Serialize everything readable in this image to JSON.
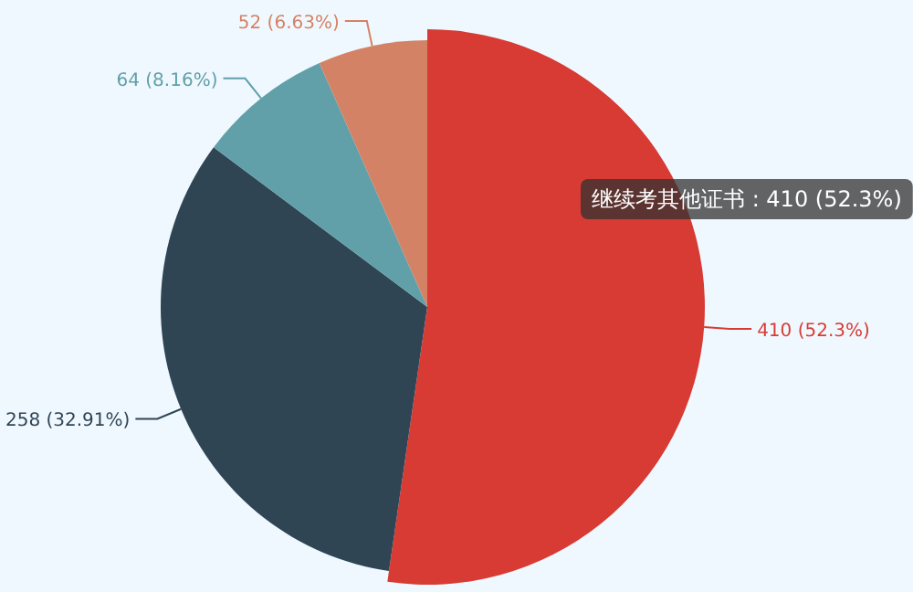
{
  "chart_data": {
    "type": "pie",
    "categories": [
      "继续考其他证书",
      null,
      null,
      null
    ],
    "values": [
      410,
      258,
      64,
      52
    ],
    "colors": [
      "#d73b33",
      "#2f4554",
      "#61a0a8",
      "#d48265"
    ],
    "value_labels": [
      "410 (52.3%)",
      "258 (32.91%)",
      "64 (8.16%)",
      "52 (6.63%)"
    ]
  }
}
